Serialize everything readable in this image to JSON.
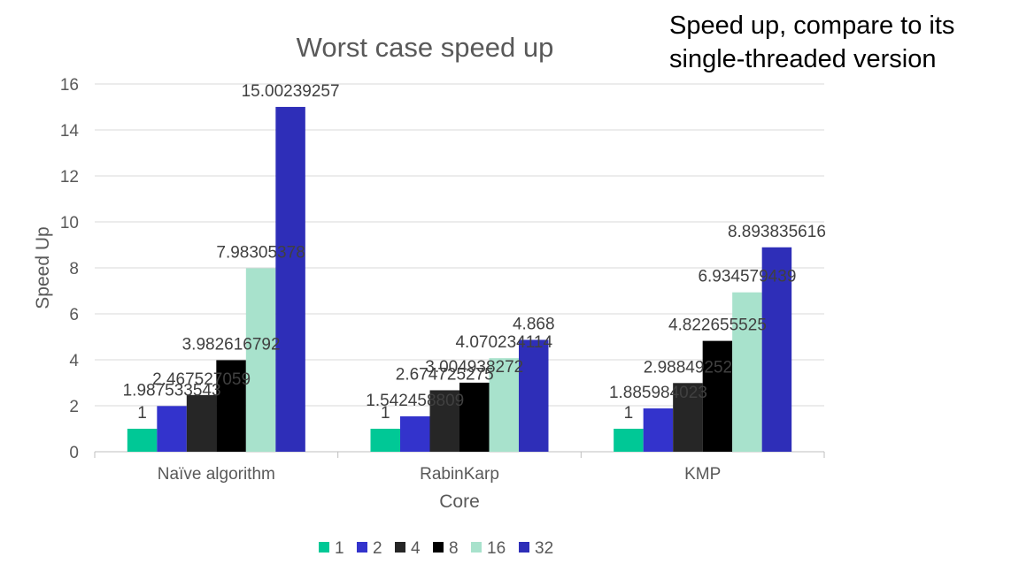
{
  "side_note": "Speed up, compare to its single-threaded version",
  "chart_data": {
    "type": "bar",
    "title": "Worst case speed up",
    "xlabel": "Core",
    "ylabel": "Speed Up",
    "ylim": [
      0,
      16
    ],
    "yticks": [
      0,
      2,
      4,
      6,
      8,
      10,
      12,
      14,
      16
    ],
    "grid": true,
    "legend_position": "bottom",
    "categories": [
      "Naïve algorithm",
      "RabinKarp",
      "KMP"
    ],
    "series": [
      {
        "name": "1",
        "color": "#00c896",
        "values": [
          1,
          1,
          1
        ],
        "labels": [
          "1",
          "1",
          "1"
        ]
      },
      {
        "name": "2",
        "color": "#3333cc",
        "values": [
          1.987533543,
          1.542458809,
          1.885984023
        ],
        "labels": [
          "1.987533543",
          "1.542458809",
          "1.885984023"
        ]
      },
      {
        "name": "4",
        "color": "#262626",
        "values": [
          2.467527059,
          2.674725275,
          2.98849252
        ],
        "labels": [
          "2.467527059",
          "2.674725275",
          "2.98849252"
        ]
      },
      {
        "name": "8",
        "color": "#000000",
        "values": [
          3.982616792,
          3.004938272,
          4.822655525
        ],
        "labels": [
          "3.982616792",
          "3.004938272",
          "4.822655525"
        ]
      },
      {
        "name": "16",
        "color": "#a8e2cc",
        "values": [
          7.98305378,
          4.070234114,
          6.934579439
        ],
        "labels": [
          "7.98305378",
          "4.070234114",
          "6.934579439"
        ]
      },
      {
        "name": "32",
        "color": "#2e2eb8",
        "values": [
          15.00239257,
          4.868,
          8.893835616
        ],
        "labels": [
          "15.00239257",
          "4.868",
          "8.893835616"
        ]
      }
    ]
  }
}
